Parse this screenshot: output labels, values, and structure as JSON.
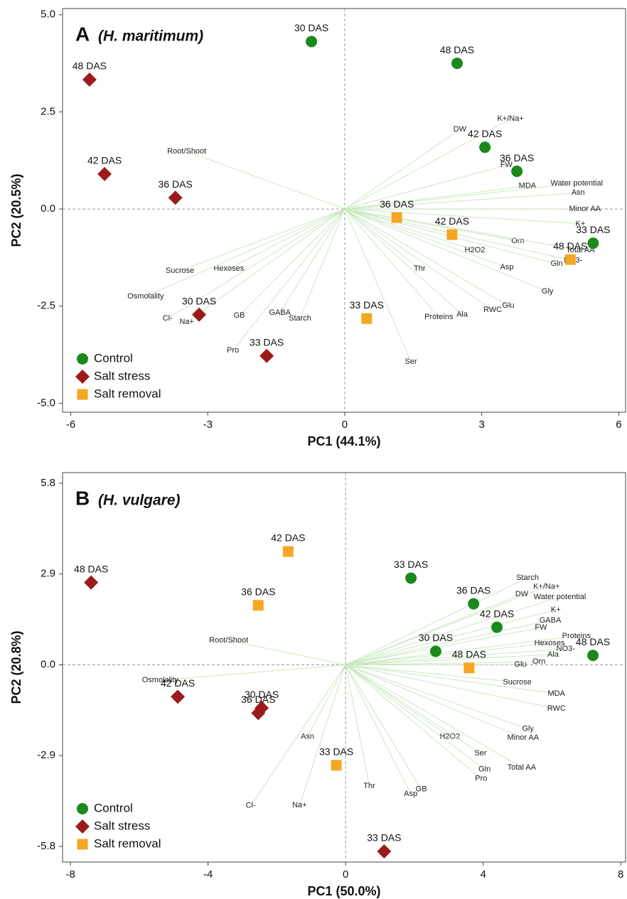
{
  "chart_data": [
    {
      "type": "scatter",
      "title": "A",
      "subtitle": "(H. maritimum)",
      "x_label": "PC1 (44.1%)",
      "y_label": "PC2 (20.5%)",
      "xlim": [
        -6.18,
        6.15
      ],
      "ylim": [
        -5.23,
        5.16
      ],
      "xticks": [
        -6,
        -3,
        0,
        3,
        6
      ],
      "yticks": [
        {
          "value": 5.0,
          "label": "5.0"
        },
        {
          "value": 2.5,
          "label": "2.5"
        },
        {
          "value": 0,
          "label": "0.0"
        },
        {
          "value": -2.5,
          "label": "-2.5"
        },
        {
          "value": -5.0,
          "label": "-5.0"
        }
      ],
      "legend": "lower left",
      "series": [
        {
          "name": "Control",
          "color": "#1a8a1a",
          "marker": "circle",
          "labels": [
            "30 DAS",
            "48 DAS",
            "42 DAS",
            "36 DAS",
            "33 DAS"
          ],
          "x": [
            -0.73,
            2.46,
            3.07,
            3.77,
            5.44
          ],
          "y": [
            4.31,
            3.75,
            1.59,
            0.97,
            -0.88
          ]
        },
        {
          "name": "Salt stress",
          "color": "#9b1b1b",
          "marker": "diamond",
          "labels": [
            "48 DAS",
            "42 DAS",
            "36 DAS",
            "30 DAS",
            "33 DAS"
          ],
          "x": [
            -5.59,
            -5.26,
            -3.71,
            -3.19,
            -1.71
          ],
          "y": [
            3.33,
            0.9,
            0.29,
            -2.72,
            -3.78
          ]
        },
        {
          "name": "Salt removal",
          "color": "#f5a623",
          "marker": "square",
          "labels": [
            "36 DAS",
            "42 DAS",
            "48 DAS",
            "33 DAS"
          ],
          "x": [
            1.14,
            2.35,
            4.94,
            0.48
          ],
          "y": [
            -0.22,
            -0.66,
            -1.3,
            -2.82
          ]
        }
      ],
      "loadings": {
        "color": "#c9e8c1",
        "names": [
          "Root/Shoot",
          "DW",
          "K+/Na+",
          "FW",
          "MDA",
          "Water potential",
          "Asn",
          "Minor AA",
          "K+",
          "Orn",
          "H2O2",
          "Total AA",
          "Gln",
          "NO3-",
          "Asp",
          "Thr",
          "Gly",
          "Glu",
          "RWC",
          "Ala",
          "Proteins",
          "Ser",
          "Sucrose",
          "Hexoses",
          "Osmolality",
          "Cl-",
          "Na+",
          "GB",
          "GABA",
          "Starch",
          "Pro"
        ],
        "x": [
          -3.46,
          2.52,
          3.63,
          3.54,
          4.0,
          5.08,
          5.11,
          5.26,
          5.16,
          3.79,
          2.85,
          5.16,
          4.64,
          5.0,
          3.55,
          1.64,
          4.44,
          3.58,
          3.24,
          2.57,
          2.06,
          1.45,
          -3.61,
          -2.54,
          -4.36,
          -3.88,
          -3.46,
          -2.31,
          -1.42,
          -0.98,
          -2.45
        ],
        "y": [
          1.48,
          2.05,
          2.32,
          1.13,
          0.59,
          0.66,
          0.42,
          0.0,
          -0.38,
          -0.82,
          -1.06,
          -1.06,
          -1.41,
          -1.33,
          -1.5,
          -1.54,
          -2.12,
          -2.49,
          -2.6,
          -2.72,
          -2.78,
          -3.93,
          -1.59,
          -1.54,
          -2.25,
          -2.82,
          -2.91,
          -2.74,
          -2.67,
          -2.82,
          -3.64
        ]
      }
    },
    {
      "type": "scatter",
      "title": "B",
      "subtitle": "(H. vulgare)",
      "x_label": "PC1 (50.0%)",
      "y_label": "PC2 (20.8%)",
      "xlim": [
        -8.23,
        8.14
      ],
      "ylim": [
        -6.3,
        6.14
      ],
      "xticks": [
        -8,
        -4,
        0,
        4,
        8
      ],
      "yticks": [
        {
          "value": 5.8,
          "label": "5.8"
        },
        {
          "value": 2.9,
          "label": "2.9"
        },
        {
          "value": 0,
          "label": "0.0"
        },
        {
          "value": -2.9,
          "label": "-2.9"
        },
        {
          "value": -5.8,
          "label": "-5.8"
        }
      ],
      "legend": "lower left",
      "series": [
        {
          "name": "Control",
          "color": "#1a8a1a",
          "marker": "circle",
          "labels": [
            "33 DAS",
            "36 DAS",
            "42 DAS",
            "30 DAS",
            "48 DAS"
          ],
          "x": [
            1.9,
            3.72,
            4.4,
            2.62,
            7.19
          ],
          "y": [
            2.77,
            1.95,
            1.2,
            0.43,
            0.3
          ]
        },
        {
          "name": "Salt stress",
          "color": "#9b1b1b",
          "marker": "diamond",
          "labels": [
            "48 DAS",
            "42 DAS",
            "30 DAS",
            "36 DAS",
            "33 DAS"
          ],
          "x": [
            -7.4,
            -4.88,
            -2.44,
            -2.54,
            1.12
          ],
          "y": [
            2.63,
            -1.02,
            -1.38,
            -1.54,
            -5.96
          ]
        },
        {
          "name": "Salt removal",
          "color": "#f5a623",
          "marker": "square",
          "labels": [
            "42 DAS",
            "36 DAS",
            "48 DAS",
            "33 DAS"
          ],
          "x": [
            -1.67,
            -2.54,
            3.59,
            -0.27
          ],
          "y": [
            3.62,
            1.9,
            -0.1,
            -3.21
          ]
        }
      ],
      "loadings": {
        "color": "#c9e8c1",
        "names": [
          "Starch",
          "K+/Na+",
          "DW",
          "Water potential",
          "K+",
          "GABA",
          "FW",
          "Proteins",
          "Hexoses",
          "NO3-",
          "Ala",
          "Orn",
          "Glu",
          "Sucrose",
          "MDA",
          "RWC",
          "Gly",
          "Minor AA",
          "H2O2",
          "Ser",
          "Total AA",
          "Gln",
          "Pro",
          "GB",
          "Asp",
          "Thr",
          "Root/Shoot",
          "Osmolality",
          "Asn",
          "Cl-",
          "Na+"
        ],
        "x": [
          5.29,
          5.84,
          5.12,
          6.23,
          6.11,
          5.95,
          5.68,
          6.71,
          5.93,
          6.4,
          6.03,
          5.62,
          5.08,
          4.99,
          6.13,
          6.13,
          5.3,
          5.16,
          3.03,
          3.92,
          5.12,
          4.04,
          3.94,
          2.2,
          1.89,
          0.69,
          -3.4,
          -5.39,
          -1.11,
          -2.76,
          -1.34
        ],
        "y": [
          2.78,
          2.49,
          2.26,
          2.17,
          1.76,
          1.42,
          1.19,
          0.92,
          0.69,
          0.51,
          0.33,
          0.1,
          0.01,
          -0.56,
          -0.92,
          -1.4,
          -2.05,
          -2.33,
          -2.3,
          -2.83,
          -3.28,
          -3.34,
          -3.64,
          -3.98,
          -4.12,
          -3.87,
          0.78,
          -0.49,
          -2.3,
          -4.5,
          -4.49
        ]
      }
    }
  ]
}
